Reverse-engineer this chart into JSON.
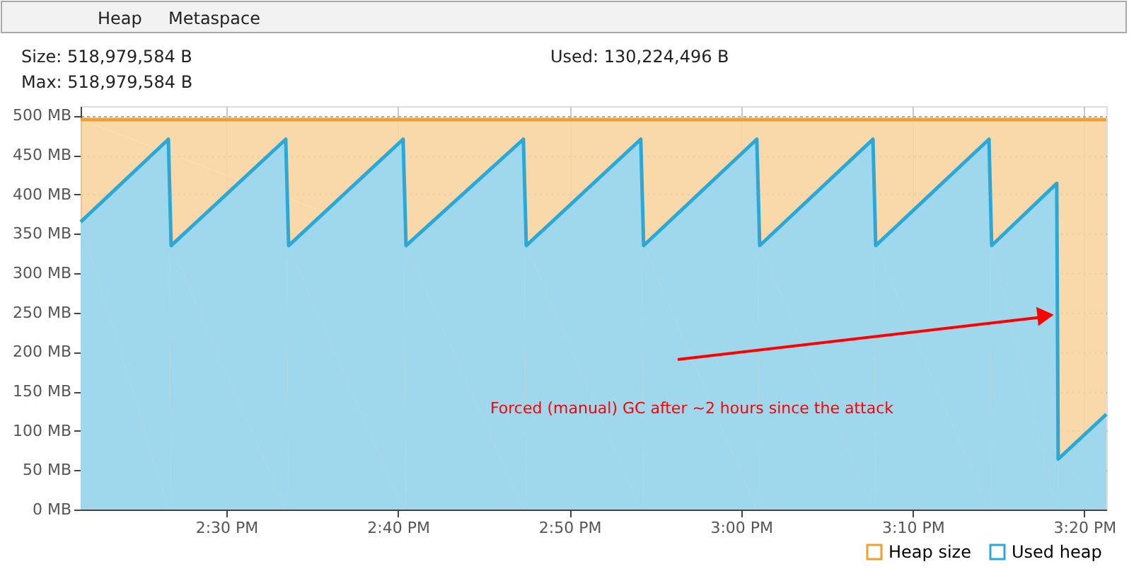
{
  "chart_data": {
    "type": "area",
    "annotations": [
      "Heap",
      "Metaspace",
      "Size: 518,979,584 B",
      "Max: 518,979,584 B",
      "Used: 130,224,496 B",
      "Forced (manual) GC after ~2 hours since the attack"
    ],
    "series": [
      {
        "name": "Heap size",
        "color": "#f0a030",
        "x": [
          14.3585,
          15.3547
        ],
        "values": [
          495,
          495
        ]
      },
      {
        "name": "Used heap",
        "color": "#2aa8d8",
        "x": [
          14.3585,
          14.4437,
          14.4464,
          14.5577,
          14.5605,
          14.6717,
          14.6745,
          14.7885,
          14.7913,
          14.9025,
          14.9053,
          15.0152,
          15.018,
          15.128,
          15.1307,
          15.2407,
          15.2433,
          15.3065,
          15.3079,
          15.3547
        ],
        "values": [
          365,
          470,
          335,
          470,
          335,
          470,
          335,
          470,
          335,
          470,
          335,
          470,
          335,
          470,
          335,
          470,
          335,
          414,
          64,
          121
        ]
      }
    ],
    "xlim": [
      14.3585,
      15.3547
    ],
    "xticks": [
      {
        "value": 14.5,
        "label": "2:30 PM"
      },
      {
        "value": 14.6667,
        "label": "2:40 PM"
      },
      {
        "value": 14.8333,
        "label": "2:50 PM"
      },
      {
        "value": 15.0,
        "label": "3:00 PM"
      },
      {
        "value": 15.1667,
        "label": "3:10 PM"
      },
      {
        "value": 15.3333,
        "label": "3:20 PM"
      }
    ],
    "ylim": [
      0,
      512
    ],
    "yticks": [
      {
        "value": 0,
        "label": "0 MB"
      },
      {
        "value": 50,
        "label": "50 MB"
      },
      {
        "value": 100,
        "label": "100 MB"
      },
      {
        "value": 150,
        "label": "150 MB"
      },
      {
        "value": 200,
        "label": "200 MB"
      },
      {
        "value": 250,
        "label": "250 MB"
      },
      {
        "value": 300,
        "label": "300 MB"
      },
      {
        "value": 350,
        "label": "350 MB"
      },
      {
        "value": 400,
        "label": "400 MB"
      },
      {
        "value": 450,
        "label": "450 MB"
      },
      {
        "value": 500,
        "label": "500 MB"
      }
    ],
    "grid": true,
    "legend": "bottom right"
  }
}
